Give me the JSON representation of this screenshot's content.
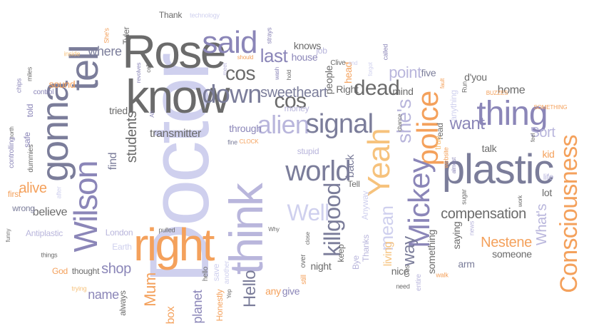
{
  "palette": {
    "dark_gray": "#6b6b6b",
    "gray": "#8c8c8c",
    "slate": "#7b7d9a",
    "purple": "#8b86b8",
    "lavender": "#b9b6dc",
    "light_lavender": "#cfd0ee",
    "orange": "#f4a15c",
    "light_orange": "#f6c27c"
  },
  "words": [
    {
      "text": "Doctor"
    },
    {
      "text": "Rose"
    },
    {
      "text": "know"
    },
    {
      "text": "tell"
    },
    {
      "text": "gonna"
    },
    {
      "text": "Wilson"
    },
    {
      "text": "right"
    },
    {
      "text": "think"
    },
    {
      "text": "said"
    },
    {
      "text": "down"
    },
    {
      "text": "cos"
    },
    {
      "text": "last"
    },
    {
      "text": "alien"
    },
    {
      "text": "signal"
    },
    {
      "text": "world"
    },
    {
      "text": "thing"
    },
    {
      "text": "plastic"
    },
    {
      "text": "police"
    },
    {
      "text": "Yeah"
    },
    {
      "text": "Mickey"
    },
    {
      "text": "Consciousness"
    },
    {
      "text": "killgood"
    },
    {
      "text": "Well"
    },
    {
      "text": "mean"
    },
    {
      "text": "way"
    },
    {
      "text": "sweetheart"
    },
    {
      "text": "dead"
    },
    {
      "text": "point"
    },
    {
      "text": "she's"
    },
    {
      "text": "want"
    },
    {
      "text": "Sort"
    },
    {
      "text": "What's"
    },
    {
      "text": "compensation"
    },
    {
      "text": "Nestene"
    },
    {
      "text": "shop"
    },
    {
      "text": "Mum"
    },
    {
      "text": "Hello"
    },
    {
      "text": "where"
    },
    {
      "text": "students"
    },
    {
      "text": "find"
    },
    {
      "text": "transmitter"
    },
    {
      "text": "alive"
    },
    {
      "text": "believe"
    },
    {
      "text": "name"
    },
    {
      "text": "planet"
    },
    {
      "text": "box"
    },
    {
      "text": "Thank"
    },
    {
      "text": "technology"
    },
    {
      "text": "She's"
    },
    {
      "text": "Tyler"
    },
    {
      "text": "strays"
    },
    {
      "text": "called"
    },
    {
      "text": "job"
    },
    {
      "text": "house"
    },
    {
      "text": "knows"
    },
    {
      "text": "people"
    },
    {
      "text": "head"
    },
    {
      "text": "Right"
    },
    {
      "text": "mind"
    },
    {
      "text": "five"
    },
    {
      "text": "home"
    },
    {
      "text": "d'you"
    },
    {
      "text": "Run"
    },
    {
      "text": "fault"
    },
    {
      "text": "anything"
    },
    {
      "text": "BUZZES"
    },
    {
      "text": "SOMETHING"
    },
    {
      "text": "sound"
    },
    {
      "text": "wash"
    },
    {
      "text": "hold"
    },
    {
      "text": "Clive"
    },
    {
      "text": "end"
    },
    {
      "text": "forgot"
    },
    {
      "text": "meet"
    },
    {
      "text": "should"
    },
    {
      "text": "inside"
    },
    {
      "text": "miles"
    },
    {
      "text": "chips"
    },
    {
      "text": "control"
    },
    {
      "text": "revolves"
    },
    {
      "text": "cell"
    },
    {
      "text": "tried"
    },
    {
      "text": "Ah"
    },
    {
      "text": "fine"
    },
    {
      "text": "CLOCK"
    },
    {
      "text": "through"
    },
    {
      "text": "money"
    },
    {
      "text": "stupid"
    },
    {
      "text": "back"
    },
    {
      "text": "Tell"
    },
    {
      "text": "Anyway"
    },
    {
      "text": "Bye"
    },
    {
      "text": "Thanks"
    },
    {
      "text": "living"
    },
    {
      "text": "nice"
    },
    {
      "text": "Cos"
    },
    {
      "text": "something"
    },
    {
      "text": "entire"
    },
    {
      "text": "need"
    },
    {
      "text": "saying"
    },
    {
      "text": "arm"
    },
    {
      "text": "someone"
    },
    {
      "text": "walk"
    },
    {
      "text": "news"
    },
    {
      "text": "talk"
    },
    {
      "text": "kid"
    },
    {
      "text": "life"
    },
    {
      "text": "lot"
    },
    {
      "text": "feel"
    },
    {
      "text": "work"
    },
    {
      "text": "sugar"
    },
    {
      "text": "website"
    },
    {
      "text": "almost"
    },
    {
      "text": "read"
    },
    {
      "text": "chance"
    },
    {
      "text": "true"
    },
    {
      "text": "safe"
    },
    {
      "text": "told"
    },
    {
      "text": "north"
    },
    {
      "text": "controlling"
    },
    {
      "text": "dummies"
    },
    {
      "text": "first"
    },
    {
      "text": "after"
    },
    {
      "text": "wrong"
    },
    {
      "text": "Antiplastic"
    },
    {
      "text": "funny"
    },
    {
      "text": "things"
    },
    {
      "text": "God"
    },
    {
      "text": "thought"
    },
    {
      "text": "trying"
    },
    {
      "text": "always"
    },
    {
      "text": "London"
    },
    {
      "text": "Earth"
    },
    {
      "text": "pulled"
    },
    {
      "text": "save"
    },
    {
      "text": "another"
    },
    {
      "text": "hello"
    },
    {
      "text": "Honestly"
    },
    {
      "text": "Yep"
    },
    {
      "text": "any"
    },
    {
      "text": "give"
    },
    {
      "text": "Why"
    },
    {
      "text": "close"
    },
    {
      "text": "over"
    },
    {
      "text": "still"
    },
    {
      "text": "night"
    },
    {
      "text": "keep"
    }
  ]
}
